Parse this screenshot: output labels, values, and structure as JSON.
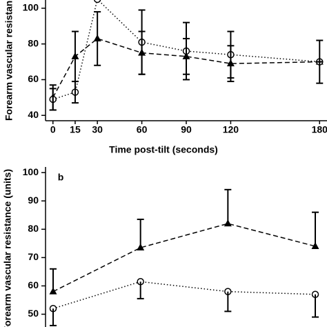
{
  "chart_data": [
    {
      "type": "line",
      "y_label": "Forearm vascular resistance (units)",
      "x_label": "Time post-tilt (seconds)",
      "x": [
        0,
        15,
        30,
        60,
        90,
        120,
        180
      ],
      "xlim": [
        -5,
        185
      ],
      "xticks": [
        0,
        15,
        30,
        60,
        90,
        120,
        180
      ],
      "ylim": [
        37,
        105
      ],
      "yticks": [
        40,
        60,
        80,
        100
      ],
      "error_side": "both",
      "series": [
        {
          "color": "#000000",
          "marker": "triangle",
          "dash": "dashed",
          "values": [
            50,
            73,
            83,
            75,
            73,
            69,
            70
          ],
          "errors": [
            7,
            14,
            15,
            12,
            10,
            10,
            12
          ]
        },
        {
          "color": "#000000",
          "marker": "circle",
          "dash": "dotted",
          "values": [
            49,
            53,
            105,
            81,
            76,
            74,
            70
          ],
          "errors": [
            6,
            6,
            null,
            18,
            16,
            13,
            0
          ]
        }
      ]
    },
    {
      "type": "line",
      "panel_label": "b",
      "y_label": "Forearm vascular resistance (units)",
      "categories": [
        null,
        null,
        null,
        null
      ],
      "ylim": [
        45,
        102
      ],
      "yticks": [
        50,
        60,
        70,
        80,
        90,
        100
      ],
      "series": [
        {
          "color": "#000000",
          "marker": "triangle",
          "dash": "dashed",
          "error_side": "up",
          "values": [
            58,
            73.5,
            82,
            74
          ],
          "errors": [
            8,
            10,
            12,
            12
          ]
        },
        {
          "color": "#000000",
          "marker": "circle",
          "dash": "dotted",
          "error_side": "down",
          "values": [
            52,
            61.5,
            58,
            57
          ],
          "errors": [
            6,
            6,
            7,
            8
          ]
        }
      ]
    }
  ]
}
